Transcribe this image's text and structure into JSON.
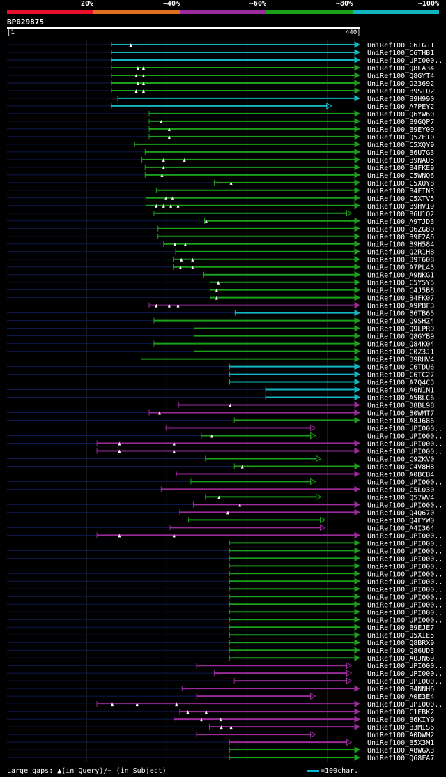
{
  "legend": {
    "labels": [
      "20%",
      "~40%",
      "~60%",
      "~80%",
      "~100%"
    ],
    "colors": [
      "#e8102a",
      "#e07020",
      "#9b2a9b",
      "#1aa01a",
      "#13b5c0"
    ]
  },
  "query": {
    "name": "BP029875",
    "start": "1",
    "end": "440",
    "length": 440
  },
  "chart_data": {
    "type": "alignment",
    "title": "BP029875",
    "x_range": [
      1,
      440
    ],
    "identity_bins": [
      "20%",
      "~40%",
      "~60%",
      "~80%",
      "~100%"
    ],
    "hits": [
      {
        "name": "UniRef100_C6TGJ1",
        "start": 131,
        "end": 440,
        "bin": 4,
        "gaps": [
          155
        ]
      },
      {
        "name": "UniRef100_C6THB1",
        "start": 131,
        "end": 440,
        "bin": 4,
        "gaps": []
      },
      {
        "name": "UniRef100_UPI000..",
        "start": 131,
        "end": 440,
        "bin": 4,
        "gaps": []
      },
      {
        "name": "UniRef100_Q8LA34",
        "start": 131,
        "end": 440,
        "bin": 3,
        "gaps": [
          164,
          171
        ]
      },
      {
        "name": "UniRef100_Q8GYT4",
        "start": 131,
        "end": 440,
        "bin": 3,
        "gaps": [
          162,
          171
        ]
      },
      {
        "name": "UniRef100_O23692",
        "start": 131,
        "end": 440,
        "bin": 3,
        "gaps": [
          164,
          171
        ]
      },
      {
        "name": "UniRef100_B9STQ2",
        "start": 131,
        "end": 440,
        "bin": 3,
        "gaps": [
          162,
          171
        ]
      },
      {
        "name": "UniRef100_B9H990",
        "start": 139,
        "end": 440,
        "bin": 4,
        "gaps": []
      },
      {
        "name": "UniRef100_A7PEY2",
        "start": 131,
        "end": 405,
        "bin": 4,
        "gaps": []
      },
      {
        "name": "UniRef100_Q6YW60",
        "start": 178,
        "end": 440,
        "bin": 3,
        "gaps": []
      },
      {
        "name": "UniRef100_B9GQP7",
        "start": 178,
        "end": 440,
        "bin": 3,
        "gaps": [
          193
        ]
      },
      {
        "name": "UniRef100_B9EY09",
        "start": 178,
        "end": 440,
        "bin": 3,
        "gaps": [
          203
        ]
      },
      {
        "name": "UniRef100_Q5ZE10",
        "start": 178,
        "end": 440,
        "bin": 3,
        "gaps": [
          203
        ]
      },
      {
        "name": "UniRef100_C5XQY9",
        "start": 160,
        "end": 440,
        "bin": 3,
        "gaps": []
      },
      {
        "name": "UniRef100_B6U7G3",
        "start": 173,
        "end": 440,
        "bin": 3,
        "gaps": []
      },
      {
        "name": "UniRef100_B9NAU5",
        "start": 169,
        "end": 440,
        "bin": 3,
        "gaps": [
          196,
          222
        ]
      },
      {
        "name": "UniRef100_B4FKE9",
        "start": 173,
        "end": 440,
        "bin": 3,
        "gaps": [
          196
        ]
      },
      {
        "name": "UniRef100_C5WNQ6",
        "start": 173,
        "end": 440,
        "bin": 3,
        "gaps": [
          194
        ]
      },
      {
        "name": "UniRef100_C5XQY8",
        "start": 259,
        "end": 440,
        "bin": 3,
        "gaps": [
          280
        ]
      },
      {
        "name": "UniRef100_B4FIN3",
        "start": 187,
        "end": 440,
        "bin": 3,
        "gaps": []
      },
      {
        "name": "UniRef100_C5XTV5",
        "start": 174,
        "end": 440,
        "bin": 3,
        "gaps": [
          199,
          207
        ]
      },
      {
        "name": "UniRef100_B9HV19",
        "start": 174,
        "end": 440,
        "bin": 3,
        "gaps": [
          187,
          196,
          205,
          214
        ]
      },
      {
        "name": "UniRef100_B6U1Q2",
        "start": 184,
        "end": 430,
        "bin": 3,
        "gaps": []
      },
      {
        "name": "UniRef100_A9TJD3",
        "start": 247,
        "end": 440,
        "bin": 3,
        "gaps": [
          249
        ]
      },
      {
        "name": "UniRef100_Q6ZG80",
        "start": 189,
        "end": 440,
        "bin": 3,
        "gaps": []
      },
      {
        "name": "UniRef100_B9F2A6",
        "start": 189,
        "end": 440,
        "bin": 3,
        "gaps": []
      },
      {
        "name": "UniRef100_B9H584",
        "start": 196,
        "end": 440,
        "bin": 3,
        "gaps": [
          210,
          223
        ]
      },
      {
        "name": "UniRef100_Q2R1H8",
        "start": 211,
        "end": 440,
        "bin": 3,
        "gaps": []
      },
      {
        "name": "UniRef100_B9T608",
        "start": 208,
        "end": 440,
        "bin": 3,
        "gaps": [
          218,
          232
        ]
      },
      {
        "name": "UniRef100_A7PL43",
        "start": 208,
        "end": 440,
        "bin": 3,
        "gaps": [
          217,
          232
        ]
      },
      {
        "name": "UniRef100_A9NKG1",
        "start": 246,
        "end": 440,
        "bin": 3,
        "gaps": []
      },
      {
        "name": "UniRef100_C5Y5Y5",
        "start": 254,
        "end": 440,
        "bin": 3,
        "gaps": [
          264
        ]
      },
      {
        "name": "UniRef100_C4J5B8",
        "start": 254,
        "end": 440,
        "bin": 3,
        "gaps": [
          262
        ]
      },
      {
        "name": "UniRef100_B4FK07",
        "start": 254,
        "end": 440,
        "bin": 3,
        "gaps": [
          262
        ]
      },
      {
        "name": "UniRef100_A9PBF3",
        "start": 178,
        "end": 440,
        "bin": 2,
        "gaps": [
          187,
          203,
          214
        ]
      },
      {
        "name": "UniRef100_B6TB65",
        "start": 285,
        "end": 440,
        "bin": 4,
        "gaps": []
      },
      {
        "name": "UniRef100_Q9SHZ4",
        "start": 184,
        "end": 440,
        "bin": 3,
        "gaps": []
      },
      {
        "name": "UniRef100_Q9LPR9",
        "start": 234,
        "end": 440,
        "bin": 3,
        "gaps": []
      },
      {
        "name": "UniRef100_Q8GYB9",
        "start": 234,
        "end": 440,
        "bin": 3,
        "gaps": []
      },
      {
        "name": "UniRef100_Q84K04",
        "start": 184,
        "end": 440,
        "bin": 3,
        "gaps": []
      },
      {
        "name": "UniRef100_C0Z3J1",
        "start": 234,
        "end": 440,
        "bin": 3,
        "gaps": []
      },
      {
        "name": "UniRef100_B9RHV4",
        "start": 168,
        "end": 440,
        "bin": 3,
        "gaps": []
      },
      {
        "name": "UniRef100_C6TDU6",
        "start": 278,
        "end": 440,
        "bin": 4,
        "gaps": []
      },
      {
        "name": "UniRef100_C6TC27",
        "start": 278,
        "end": 440,
        "bin": 4,
        "gaps": []
      },
      {
        "name": "UniRef100_A7Q4C3",
        "start": 278,
        "end": 440,
        "bin": 4,
        "gaps": []
      },
      {
        "name": "UniRef100_A6N1N1",
        "start": 323,
        "end": 440,
        "bin": 4,
        "gaps": []
      },
      {
        "name": "UniRef100_A5BLC6",
        "start": 323,
        "end": 440,
        "bin": 4,
        "gaps": []
      },
      {
        "name": "UniRef100_B8BL98",
        "start": 215,
        "end": 440,
        "bin": 2,
        "gaps": [
          279
        ]
      },
      {
        "name": "UniRef100_B0WMT7",
        "start": 178,
        "end": 440,
        "bin": 2,
        "gaps": [
          191
        ]
      },
      {
        "name": "UniRef100_A8J686",
        "start": 284,
        "end": 440,
        "bin": 3,
        "gaps": []
      },
      {
        "name": "UniRef100_UPI000..",
        "start": 199,
        "end": 385,
        "bin": 2,
        "gaps": []
      },
      {
        "name": "UniRef100_UPI000..",
        "start": 243,
        "end": 385,
        "bin": 3,
        "gaps": [
          256
        ]
      },
      {
        "name": "UniRef100_UPI000..",
        "start": 113,
        "end": 440,
        "bin": 2,
        "gaps": [
          141,
          209
        ]
      },
      {
        "name": "UniRef100_UPI000..",
        "start": 113,
        "end": 440,
        "bin": 2,
        "gaps": [
          141,
          209
        ]
      },
      {
        "name": "UniRef100_C9ZKV0",
        "start": 248,
        "end": 392,
        "bin": 3,
        "gaps": []
      },
      {
        "name": "UniRef100_C4V8H8",
        "start": 284,
        "end": 440,
        "bin": 3,
        "gaps": [
          294
        ]
      },
      {
        "name": "UniRef100_A0BCB4",
        "start": 212,
        "end": 440,
        "bin": 2,
        "gaps": []
      },
      {
        "name": "UniRef100_UPI000..",
        "start": 230,
        "end": 385,
        "bin": 3,
        "gaps": []
      },
      {
        "name": "UniRef100_C5L030",
        "start": 193,
        "end": 440,
        "bin": 2,
        "gaps": []
      },
      {
        "name": "UniRef100_Q57WV4",
        "start": 248,
        "end": 392,
        "bin": 3,
        "gaps": [
          265
        ]
      },
      {
        "name": "UniRef100_UPI000..",
        "start": 233,
        "end": 440,
        "bin": 2,
        "gaps": [
          291
        ]
      },
      {
        "name": "UniRef100_Q4Q670",
        "start": 216,
        "end": 440,
        "bin": 2,
        "gaps": [
          276
        ]
      },
      {
        "name": "UniRef100_Q4FYW0",
        "start": 227,
        "end": 397,
        "bin": 3,
        "gaps": []
      },
      {
        "name": "UniRef100_A4I364",
        "start": 204,
        "end": 397,
        "bin": 2,
        "gaps": []
      },
      {
        "name": "UniRef100_UPI000..",
        "start": 113,
        "end": 440,
        "bin": 2,
        "gaps": [
          141,
          209
        ]
      },
      {
        "name": "UniRef100_UPI000..",
        "start": 278,
        "end": 440,
        "bin": 3,
        "gaps": []
      },
      {
        "name": "UniRef100_UPI000..",
        "start": 278,
        "end": 440,
        "bin": 3,
        "gaps": []
      },
      {
        "name": "UniRef100_UPI000..",
        "start": 278,
        "end": 440,
        "bin": 3,
        "gaps": []
      },
      {
        "name": "UniRef100_UPI000..",
        "start": 278,
        "end": 440,
        "bin": 3,
        "gaps": []
      },
      {
        "name": "UniRef100_UPI000..",
        "start": 278,
        "end": 440,
        "bin": 3,
        "gaps": []
      },
      {
        "name": "UniRef100_UPI000..",
        "start": 278,
        "end": 440,
        "bin": 3,
        "gaps": []
      },
      {
        "name": "UniRef100_UPI000..",
        "start": 278,
        "end": 440,
        "bin": 3,
        "gaps": []
      },
      {
        "name": "UniRef100_UPI000..",
        "start": 278,
        "end": 440,
        "bin": 3,
        "gaps": []
      },
      {
        "name": "UniRef100_UPI000..",
        "start": 278,
        "end": 440,
        "bin": 3,
        "gaps": []
      },
      {
        "name": "UniRef100_UPI000..",
        "start": 278,
        "end": 440,
        "bin": 3,
        "gaps": []
      },
      {
        "name": "UniRef100_UPI000..",
        "start": 278,
        "end": 440,
        "bin": 3,
        "gaps": []
      },
      {
        "name": "UniRef100_B9EJE7",
        "start": 278,
        "end": 440,
        "bin": 3,
        "gaps": []
      },
      {
        "name": "UniRef100_Q5XIE5",
        "start": 278,
        "end": 440,
        "bin": 3,
        "gaps": []
      },
      {
        "name": "UniRef100_Q8BRX9",
        "start": 278,
        "end": 440,
        "bin": 3,
        "gaps": []
      },
      {
        "name": "UniRef100_Q86UD3",
        "start": 278,
        "end": 440,
        "bin": 3,
        "gaps": []
      },
      {
        "name": "UniRef100_A0JN69",
        "start": 278,
        "end": 440,
        "bin": 3,
        "gaps": []
      },
      {
        "name": "UniRef100_UPI000..",
        "start": 237,
        "end": 430,
        "bin": 2,
        "gaps": []
      },
      {
        "name": "UniRef100_UPI000..",
        "start": 259,
        "end": 430,
        "bin": 2,
        "gaps": []
      },
      {
        "name": "UniRef100_UPI000..",
        "start": 284,
        "end": 430,
        "bin": 2,
        "gaps": []
      },
      {
        "name": "UniRef100_B4NNH6",
        "start": 219,
        "end": 440,
        "bin": 2,
        "gaps": []
      },
      {
        "name": "UniRef100_A0E3E4",
        "start": 237,
        "end": 385,
        "bin": 2,
        "gaps": []
      },
      {
        "name": "UniRef100_UPI000..",
        "start": 113,
        "end": 440,
        "bin": 2,
        "gaps": [
          132,
          163,
          212
        ]
      },
      {
        "name": "UniRef100_C1EBK2",
        "start": 216,
        "end": 440,
        "bin": 2,
        "gaps": [
          226,
          249
        ]
      },
      {
        "name": "UniRef100_B6KIY9",
        "start": 209,
        "end": 440,
        "bin": 2,
        "gaps": [
          243,
          267
        ]
      },
      {
        "name": "UniRef100_B3MIS6",
        "start": 253,
        "end": 440,
        "bin": 2,
        "gaps": [
          268,
          280
        ]
      },
      {
        "name": "UniRef100_A0DWM2",
        "start": 237,
        "end": 385,
        "bin": 2,
        "gaps": []
      },
      {
        "name": "UniRef100_B5X3M1",
        "start": 278,
        "end": 430,
        "bin": 2,
        "gaps": []
      },
      {
        "name": "UniRef100_A8WGX3",
        "start": 278,
        "end": 440,
        "bin": 3,
        "gaps": []
      },
      {
        "name": "UniRef100_Q68FA7",
        "start": 278,
        "end": 440,
        "bin": 3,
        "gaps": []
      }
    ]
  },
  "footer": {
    "gaps_note": "Large gaps: ▲(in Query)/− (in Subject)",
    "scale_note": "=100char."
  }
}
